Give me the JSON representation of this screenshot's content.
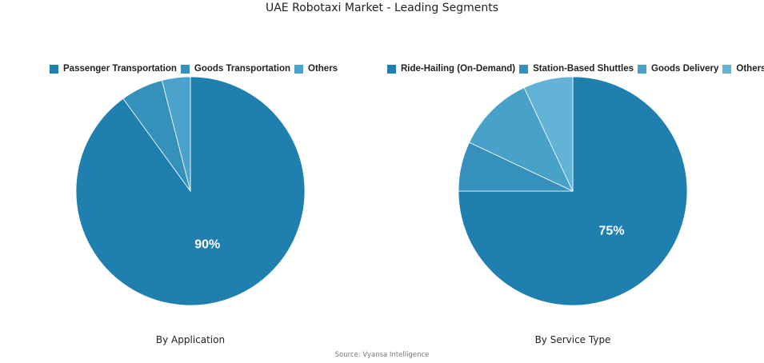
{
  "title": "UAE Robotaxi Market - Leading Segments",
  "source": "Source: Vyansa Intelligence",
  "chart_data": [
    {
      "type": "pie",
      "subtitle": "By Application",
      "categories": [
        "Passenger Transportation",
        "Goods Transportation",
        "Others"
      ],
      "values": [
        90,
        6,
        4
      ],
      "colors": [
        "#1f80b0",
        "#3590bc",
        "#4ba3cc"
      ],
      "data_labels": [
        "90%",
        "",
        ""
      ],
      "legend_position": "top"
    },
    {
      "type": "pie",
      "subtitle": "By Service Type",
      "categories": [
        "Ride-Hailing (On-Demand)",
        "Station-Based Shuttles",
        "Goods Delivery",
        "Others"
      ],
      "values": [
        75,
        7,
        11,
        7
      ],
      "colors": [
        "#1f80b0",
        "#3590bc",
        "#48a1c9",
        "#62b3d6"
      ],
      "data_labels": [
        "75%",
        "",
        "",
        ""
      ],
      "legend_position": "top"
    }
  ]
}
